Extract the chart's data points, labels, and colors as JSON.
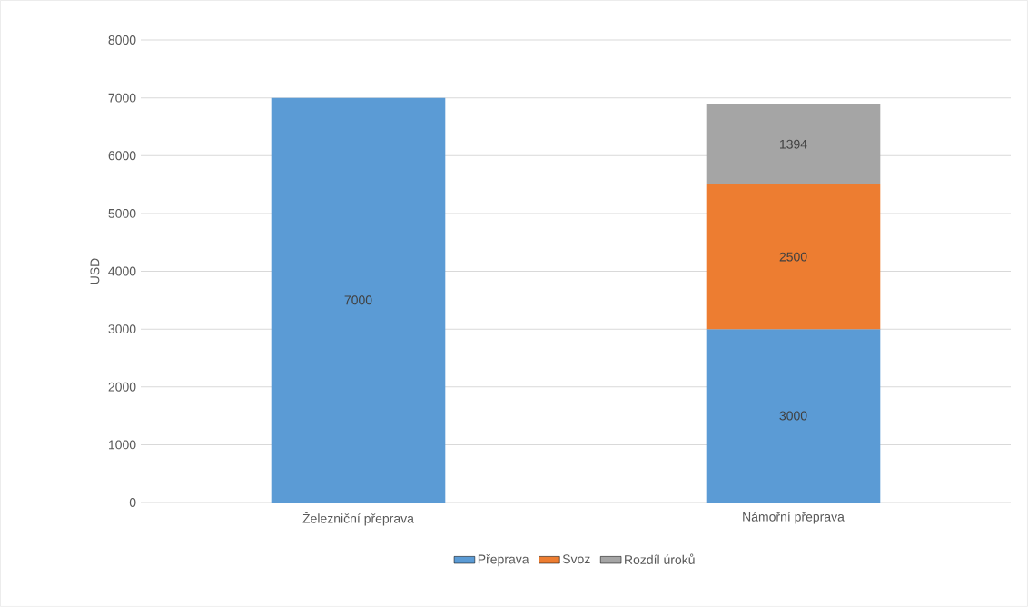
{
  "chart_data": {
    "type": "bar",
    "stacked": true,
    "ylabel": "USD",
    "categories": [
      "Železniční přeprava",
      "Námořní přeprava"
    ],
    "series": [
      {
        "name": "Přeprava",
        "color": "#5b9bd5",
        "values": [
          7000,
          3000
        ]
      },
      {
        "name": "Svoz",
        "color": "#ed7d31",
        "values": [
          null,
          2500
        ]
      },
      {
        "name": "Rozdíl úroků",
        "color": "#a5a5a5",
        "values": [
          null,
          1394
        ]
      }
    ],
    "ylim": [
      0,
      8000
    ],
    "yticks": [
      0,
      1000,
      2000,
      3000,
      4000,
      5000,
      6000,
      7000,
      8000
    ],
    "grid": "y",
    "legend": "bottom",
    "data_labels": true
  }
}
